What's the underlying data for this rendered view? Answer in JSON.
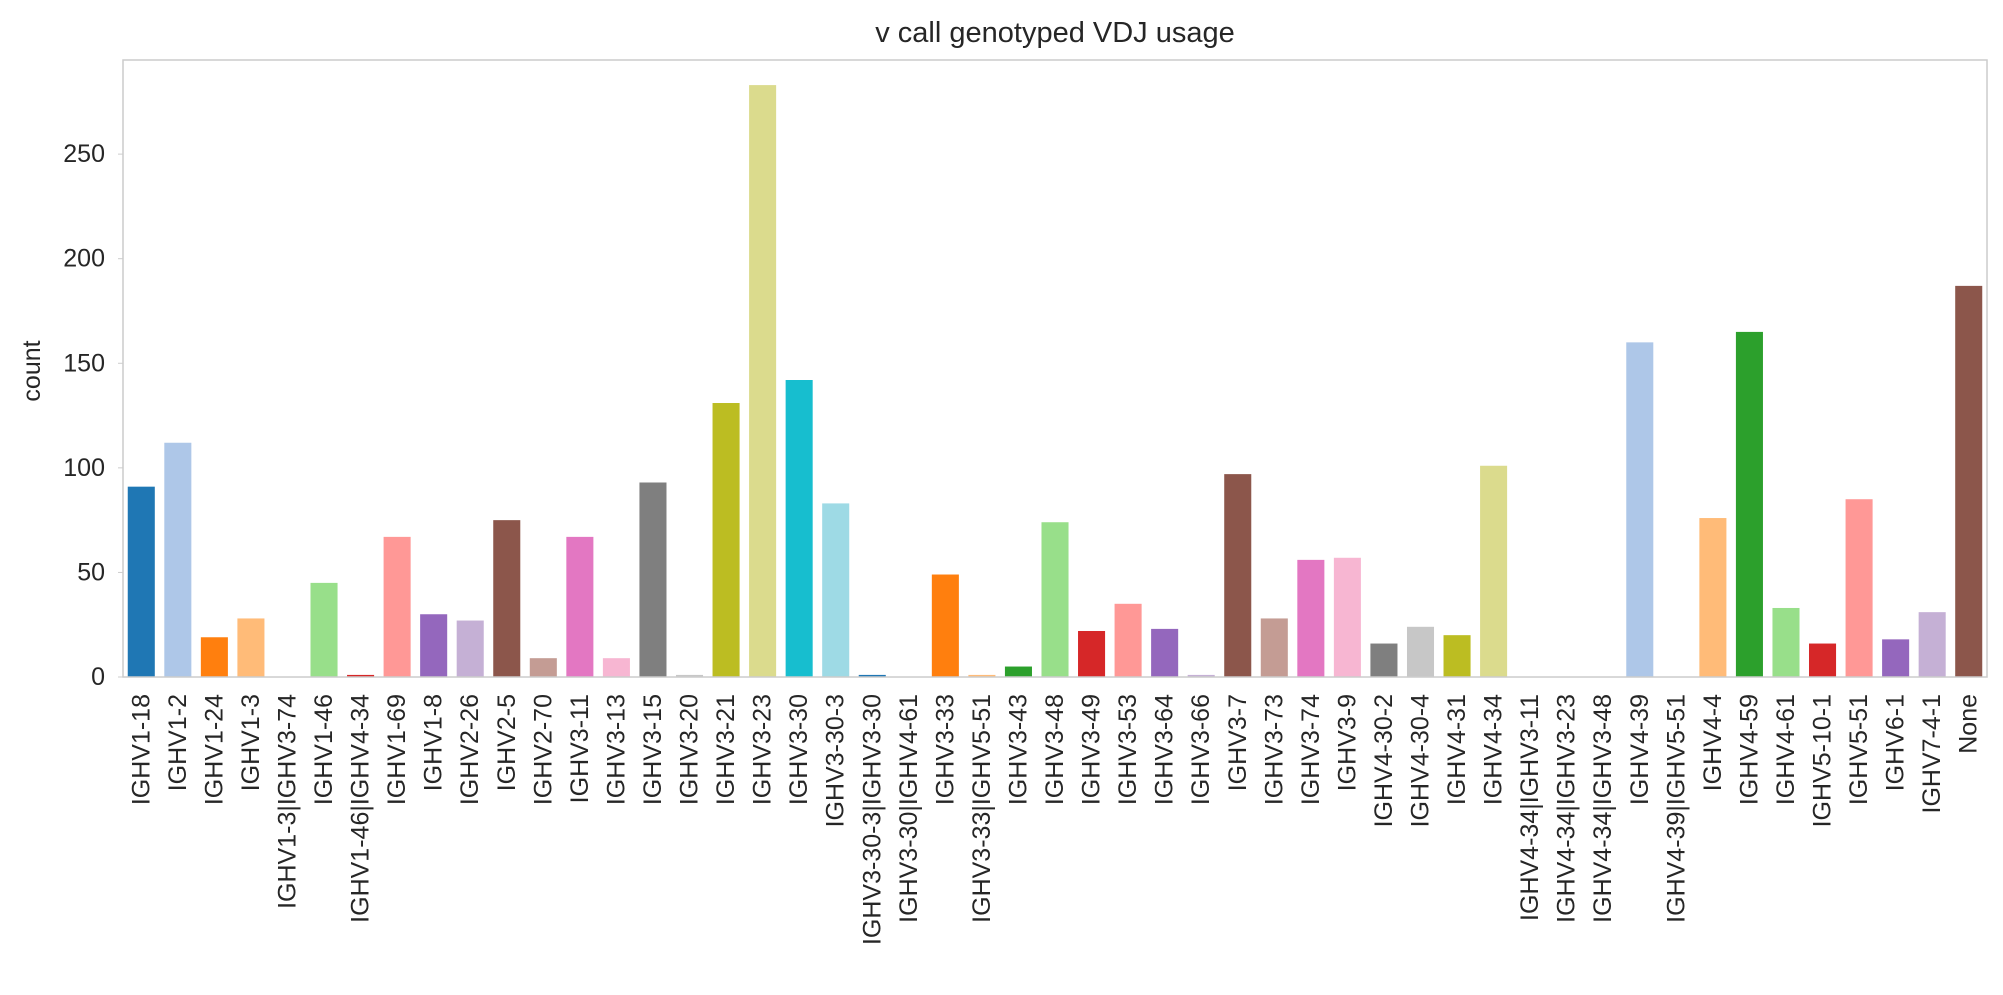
{
  "chart_data": {
    "type": "bar",
    "title": "v call genotyped VDJ usage",
    "xlabel": "",
    "ylabel": "count",
    "ylim": [
      0,
      295
    ],
    "yticks": [
      0,
      50,
      100,
      150,
      200,
      250
    ],
    "grid": false,
    "legend": "none",
    "categories": [
      "IGHV1-18",
      "IGHV1-2",
      "IGHV1-24",
      "IGHV1-3",
      "IGHV1-3|IGHV3-74",
      "IGHV1-46",
      "IGHV1-46|IGHV4-34",
      "IGHV1-69",
      "IGHV1-8",
      "IGHV2-26",
      "IGHV2-5",
      "IGHV2-70",
      "IGHV3-11",
      "IGHV3-13",
      "IGHV3-15",
      "IGHV3-20",
      "IGHV3-21",
      "IGHV3-23",
      "IGHV3-30",
      "IGHV3-30-3",
      "IGHV3-30-3|IGHV3-30",
      "IGHV3-30|IGHV4-61",
      "IGHV3-33",
      "IGHV3-33|IGHV5-51",
      "IGHV3-43",
      "IGHV3-48",
      "IGHV3-49",
      "IGHV3-53",
      "IGHV3-64",
      "IGHV3-66",
      "IGHV3-7",
      "IGHV3-73",
      "IGHV3-74",
      "IGHV3-9",
      "IGHV4-30-2",
      "IGHV4-30-4",
      "IGHV4-31",
      "IGHV4-34",
      "IGHV4-34|IGHV3-11",
      "IGHV4-34|IGHV3-23",
      "IGHV4-34|IGHV3-48",
      "IGHV4-39",
      "IGHV4-39|IGHV5-51",
      "IGHV4-4",
      "IGHV4-59",
      "IGHV4-61",
      "IGHV5-10-1",
      "IGHV5-51",
      "IGHV6-1",
      "IGHV7-4-1",
      "None"
    ],
    "values": [
      91,
      112,
      19,
      28,
      0,
      45,
      1,
      67,
      30,
      27,
      75,
      9,
      67,
      9,
      93,
      1,
      131,
      283,
      142,
      83,
      1,
      0,
      49,
      1,
      5,
      74,
      22,
      35,
      23,
      1,
      97,
      28,
      56,
      57,
      16,
      24,
      20,
      101,
      0,
      0,
      0,
      160,
      0,
      76,
      165,
      33,
      16,
      85,
      18,
      31,
      187
    ],
    "colors": [
      "#1f77b4",
      "#aec7e8",
      "#ff7f0e",
      "#ffbb78",
      "#2ca02c",
      "#98df8a",
      "#d62728",
      "#ff9896",
      "#9467bd",
      "#c5b0d5",
      "#8c564b",
      "#c49c94",
      "#e377c2",
      "#f7b6d2",
      "#7f7f7f",
      "#c7c7c7",
      "#bcbd22",
      "#dbdb8d",
      "#17becf",
      "#9edae5"
    ]
  }
}
